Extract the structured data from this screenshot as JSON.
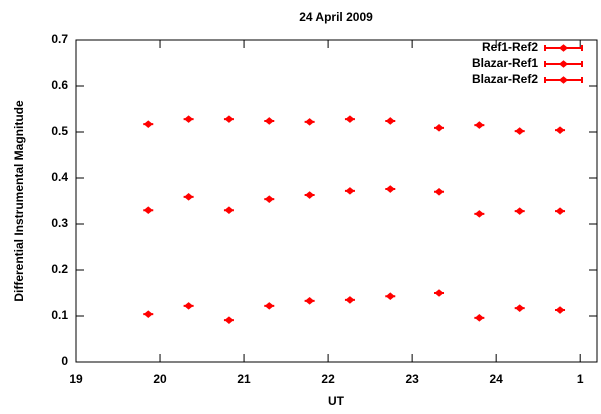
{
  "chart_data": {
    "type": "scatter",
    "title": "24 April 2009",
    "x_label": "UT",
    "y_label": "Differential Instrumental Magnitude",
    "x": [
      19.86,
      20.34,
      20.82,
      21.3,
      21.78,
      22.26,
      22.74,
      23.32,
      23.8,
      24.28,
      24.76
    ],
    "series": [
      {
        "name": "Ref1-Ref2",
        "color": "#ff0000",
        "values": [
          0.517,
          0.528,
          0.528,
          0.524,
          0.522,
          0.528,
          0.524,
          0.509,
          0.515,
          0.502,
          0.504
        ]
      },
      {
        "name": "Blazar-Ref1",
        "color": "#ff0000",
        "values": [
          0.33,
          0.359,
          0.33,
          0.354,
          0.363,
          0.372,
          0.376,
          0.37,
          0.322,
          0.328,
          0.328
        ]
      },
      {
        "name": "Blazar-Ref2",
        "color": "#ff0000",
        "values": [
          0.104,
          0.122,
          0.091,
          0.122,
          0.133,
          0.135,
          0.143,
          0.15,
          0.096,
          0.117,
          0.113
        ]
      }
    ],
    "xlim": [
      19,
      25.2
    ],
    "xticks": [
      19,
      20,
      21,
      22,
      23,
      24,
      {
        "value": 25,
        "label": "1"
      }
    ],
    "ylim": [
      0,
      0.7
    ],
    "yticks": [
      0,
      0.1,
      0.2,
      0.3,
      0.4,
      0.5,
      0.6,
      0.7
    ],
    "legend": "upper-right",
    "grid": false
  }
}
